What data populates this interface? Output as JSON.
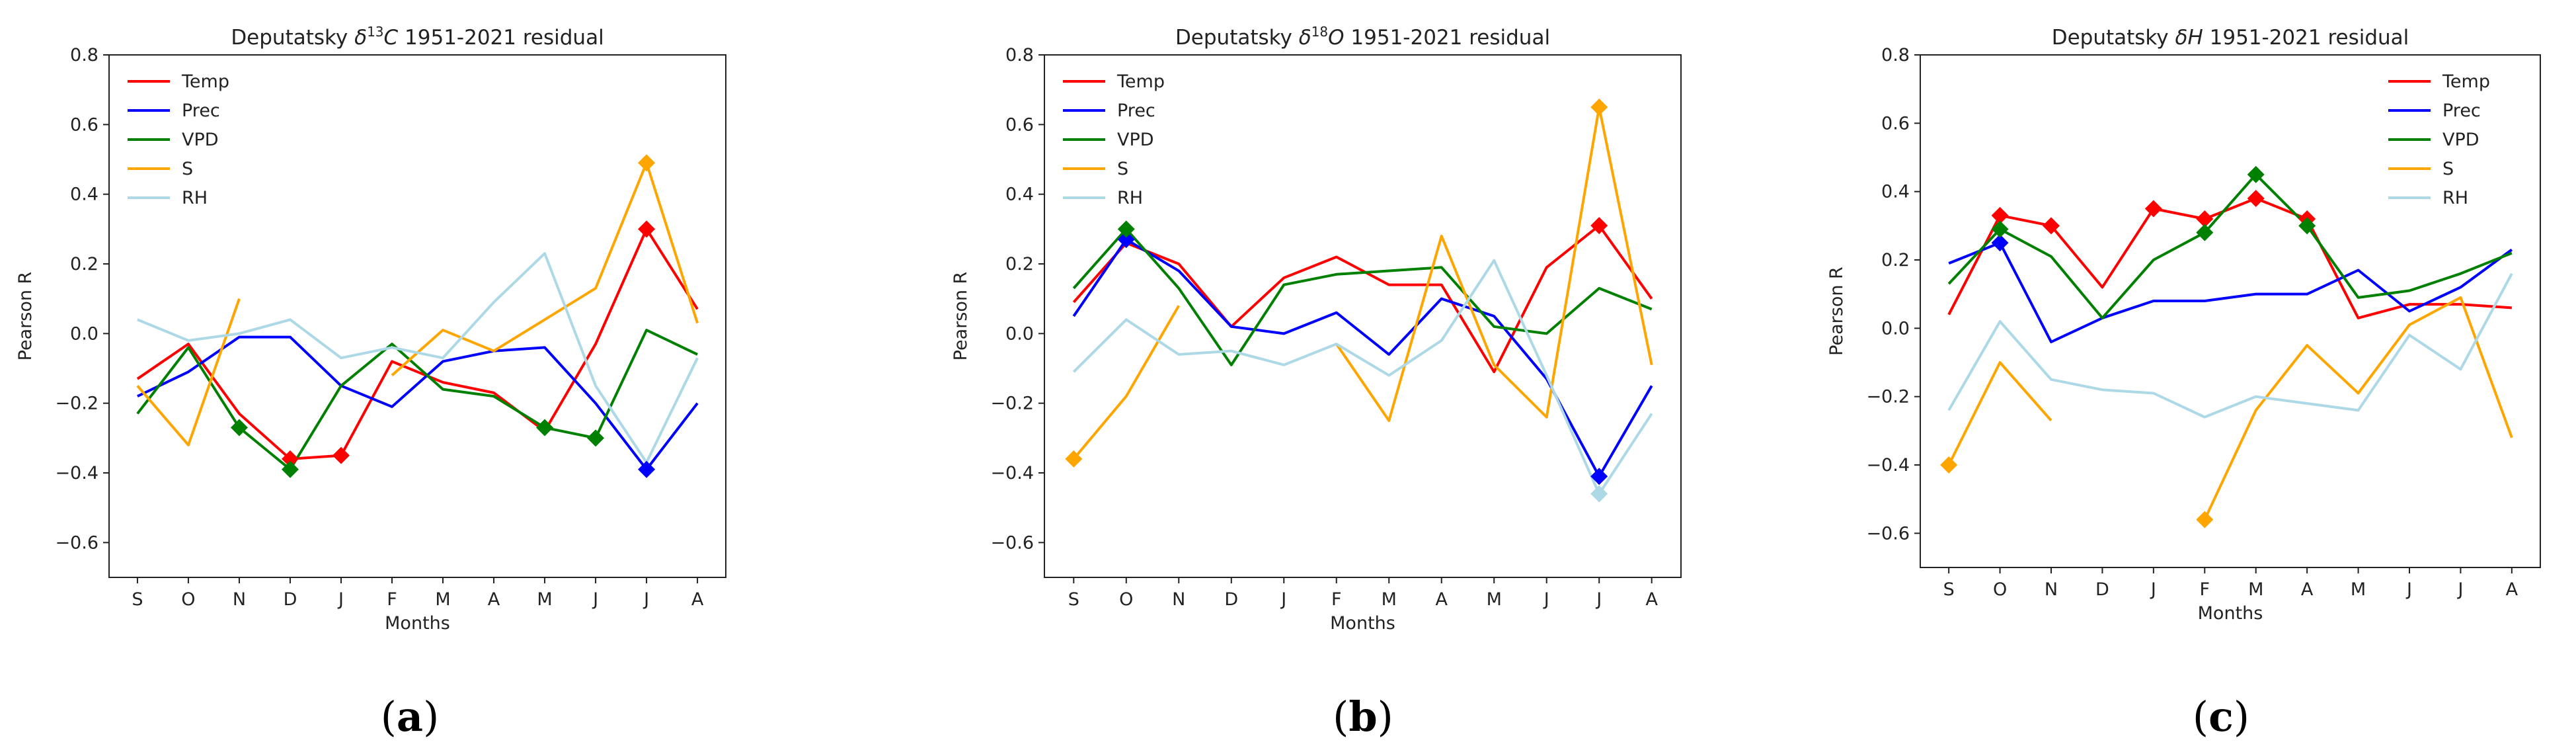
{
  "chart_data": [
    {
      "type": "line",
      "panel_label": "a",
      "title": {
        "prefix": "Deputatsky ",
        "delta": "δ",
        "sup": "13",
        "element": "C",
        "suffix": " 1951-2021 residual"
      },
      "xlabel": "Months",
      "ylabel": "Pearson R",
      "categories": [
        "S",
        "O",
        "N",
        "D",
        "J",
        "F",
        "M",
        "A",
        "M",
        "J",
        "J",
        "A"
      ],
      "ylim": [
        -0.7,
        0.8
      ],
      "yticks": [
        -0.6,
        -0.4,
        -0.2,
        0.0,
        0.2,
        0.4,
        0.6,
        0.8
      ],
      "legend_position": "upper-left",
      "series": [
        {
          "name": "Temp",
          "color": "#ff0000",
          "values": [
            -0.13,
            -0.03,
            -0.23,
            -0.36,
            -0.35,
            -0.08,
            -0.14,
            -0.17,
            -0.28,
            -0.03,
            0.3,
            0.07
          ],
          "significant": [
            3,
            4,
            10
          ]
        },
        {
          "name": "Prec",
          "color": "#0000ff",
          "values": [
            -0.18,
            -0.11,
            -0.01,
            -0.01,
            -0.15,
            -0.21,
            -0.08,
            -0.05,
            -0.04,
            -0.2,
            -0.39,
            -0.2
          ],
          "significant": [
            10
          ]
        },
        {
          "name": "VPD",
          "color": "#008000",
          "values": [
            -0.23,
            -0.04,
            -0.27,
            -0.39,
            -0.15,
            -0.03,
            -0.16,
            -0.18,
            -0.27,
            -0.3,
            0.01,
            -0.06
          ],
          "significant": [
            2,
            3,
            8,
            9
          ]
        },
        {
          "name": "S",
          "color": "#ffa500",
          "values": [
            -0.15,
            -0.32,
            0.1,
            null,
            null,
            -0.12,
            0.01,
            -0.05,
            0.04,
            0.13,
            0.49,
            0.03
          ],
          "significant": [
            10
          ]
        },
        {
          "name": "RH",
          "color": "#add8e6",
          "values": [
            0.04,
            -0.02,
            0.0,
            0.04,
            -0.07,
            -0.04,
            -0.07,
            0.09,
            0.23,
            -0.15,
            -0.37,
            -0.07
          ],
          "significant": []
        }
      ]
    },
    {
      "type": "line",
      "panel_label": "b",
      "title": {
        "prefix": "Deputatsky ",
        "delta": "δ",
        "sup": "18",
        "element": "O",
        "suffix": " 1951-2021 residual"
      },
      "xlabel": "Months",
      "ylabel": "Pearson R",
      "categories": [
        "S",
        "O",
        "N",
        "D",
        "J",
        "F",
        "M",
        "A",
        "M",
        "J",
        "J",
        "A"
      ],
      "ylim": [
        -0.7,
        0.8
      ],
      "yticks": [
        -0.6,
        -0.4,
        -0.2,
        0.0,
        0.2,
        0.4,
        0.6,
        0.8
      ],
      "legend_position": "upper-left",
      "series": [
        {
          "name": "Temp",
          "color": "#ff0000",
          "values": [
            0.09,
            0.26,
            0.2,
            0.02,
            0.16,
            0.22,
            0.14,
            0.14,
            -0.11,
            0.19,
            0.31,
            0.1
          ],
          "significant": [
            10
          ]
        },
        {
          "name": "Prec",
          "color": "#0000ff",
          "values": [
            0.05,
            0.27,
            0.18,
            0.02,
            0.0,
            0.06,
            -0.06,
            0.1,
            0.05,
            -0.13,
            -0.41,
            -0.15
          ],
          "significant": [
            1,
            10
          ]
        },
        {
          "name": "VPD",
          "color": "#008000",
          "values": [
            0.13,
            0.3,
            0.13,
            -0.09,
            0.14,
            0.17,
            0.18,
            0.19,
            0.02,
            0.0,
            0.13,
            0.07
          ],
          "significant": [
            1
          ]
        },
        {
          "name": "S",
          "color": "#ffa500",
          "values": [
            -0.36,
            -0.18,
            0.08,
            null,
            null,
            -0.03,
            -0.25,
            0.28,
            -0.09,
            -0.24,
            0.65,
            -0.09
          ],
          "significant": [
            0,
            10
          ]
        },
        {
          "name": "RH",
          "color": "#add8e6",
          "values": [
            -0.11,
            0.04,
            -0.06,
            -0.05,
            -0.09,
            -0.03,
            -0.12,
            -0.02,
            0.21,
            -0.12,
            -0.46,
            -0.23
          ],
          "significant": [
            10
          ]
        }
      ]
    },
    {
      "type": "line",
      "panel_label": "c",
      "title": {
        "prefix": "Deputatsky ",
        "delta": "δ",
        "sup": "",
        "element": "H",
        "suffix": " 1951-2021 residual"
      },
      "xlabel": "Months",
      "ylabel": "Pearson R",
      "categories": [
        "S",
        "O",
        "N",
        "D",
        "J",
        "F",
        "M",
        "A",
        "M",
        "J",
        "J",
        "A"
      ],
      "ylim": [
        -0.7,
        0.8
      ],
      "yticks": [
        -0.6,
        -0.4,
        -0.2,
        0.0,
        0.2,
        0.4,
        0.6,
        0.8
      ],
      "legend_position": "upper-right",
      "series": [
        {
          "name": "Temp",
          "color": "#ff0000",
          "values": [
            0.04,
            0.33,
            0.3,
            0.12,
            0.35,
            0.32,
            0.38,
            0.32,
            0.03,
            0.07,
            0.07,
            0.06
          ],
          "significant": [
            1,
            2,
            4,
            5,
            6,
            7
          ]
        },
        {
          "name": "Prec",
          "color": "#0000ff",
          "values": [
            0.19,
            0.25,
            -0.04,
            0.03,
            0.08,
            0.08,
            0.1,
            0.1,
            0.17,
            0.05,
            0.12,
            0.23
          ],
          "significant": [
            1
          ]
        },
        {
          "name": "VPD",
          "color": "#008000",
          "values": [
            0.13,
            0.29,
            0.21,
            0.03,
            0.2,
            0.28,
            0.45,
            0.3,
            0.09,
            0.11,
            0.16,
            0.22
          ],
          "significant": [
            1,
            5,
            6,
            7
          ]
        },
        {
          "name": "S",
          "color": "#ffa500",
          "values": [
            -0.4,
            -0.1,
            -0.27,
            null,
            null,
            -0.56,
            -0.24,
            -0.05,
            -0.19,
            0.01,
            0.09,
            -0.32
          ],
          "significant": [
            0,
            5
          ]
        },
        {
          "name": "RH",
          "color": "#add8e6",
          "values": [
            -0.24,
            0.02,
            -0.15,
            -0.18,
            -0.19,
            -0.26,
            -0.2,
            -0.22,
            -0.24,
            -0.02,
            -0.12,
            0.16
          ],
          "significant": []
        }
      ]
    }
  ]
}
